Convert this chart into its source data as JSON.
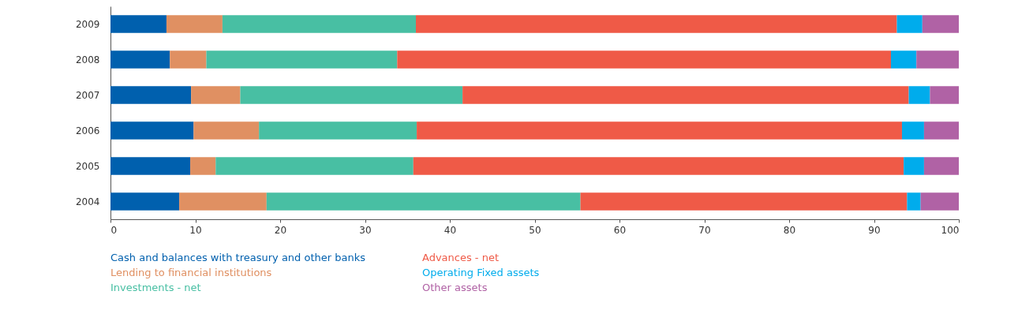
{
  "chart_data": {
    "type": "bar",
    "orientation": "horizontal",
    "stacked": true,
    "categories": [
      "2009",
      "2008",
      "2007",
      "2006",
      "2005",
      "2004"
    ],
    "series": [
      {
        "name": "Cash and balances with treasury and other banks",
        "color": "#0060ae",
        "values": [
          6.6,
          7.0,
          9.5,
          9.8,
          9.4,
          8.1
        ]
      },
      {
        "name": "Lending to financial institutions",
        "color": "#e09062",
        "values": [
          6.6,
          4.3,
          5.8,
          7.7,
          3.0,
          10.3
        ]
      },
      {
        "name": "Investments - net",
        "color": "#48bfa3",
        "values": [
          22.8,
          22.5,
          26.2,
          18.6,
          23.3,
          37.0
        ]
      },
      {
        "name": "Advances - net",
        "color": "#ef5a47",
        "values": [
          56.7,
          58.2,
          52.6,
          57.2,
          57.8,
          38.5
        ]
      },
      {
        "name": "Operating Fixed assets",
        "color": "#00acec",
        "values": [
          3.0,
          3.0,
          2.5,
          2.6,
          2.4,
          1.6
        ]
      },
      {
        "name": "Other assets",
        "color": "#b062a5",
        "values": [
          4.3,
          5.0,
          3.4,
          4.1,
          4.1,
          4.5
        ]
      }
    ],
    "xlim": [
      0,
      100
    ],
    "xticks": [
      0,
      10,
      20,
      30,
      40,
      50,
      60,
      70,
      80,
      90,
      100
    ],
    "grid": false,
    "legend": "bottom"
  }
}
